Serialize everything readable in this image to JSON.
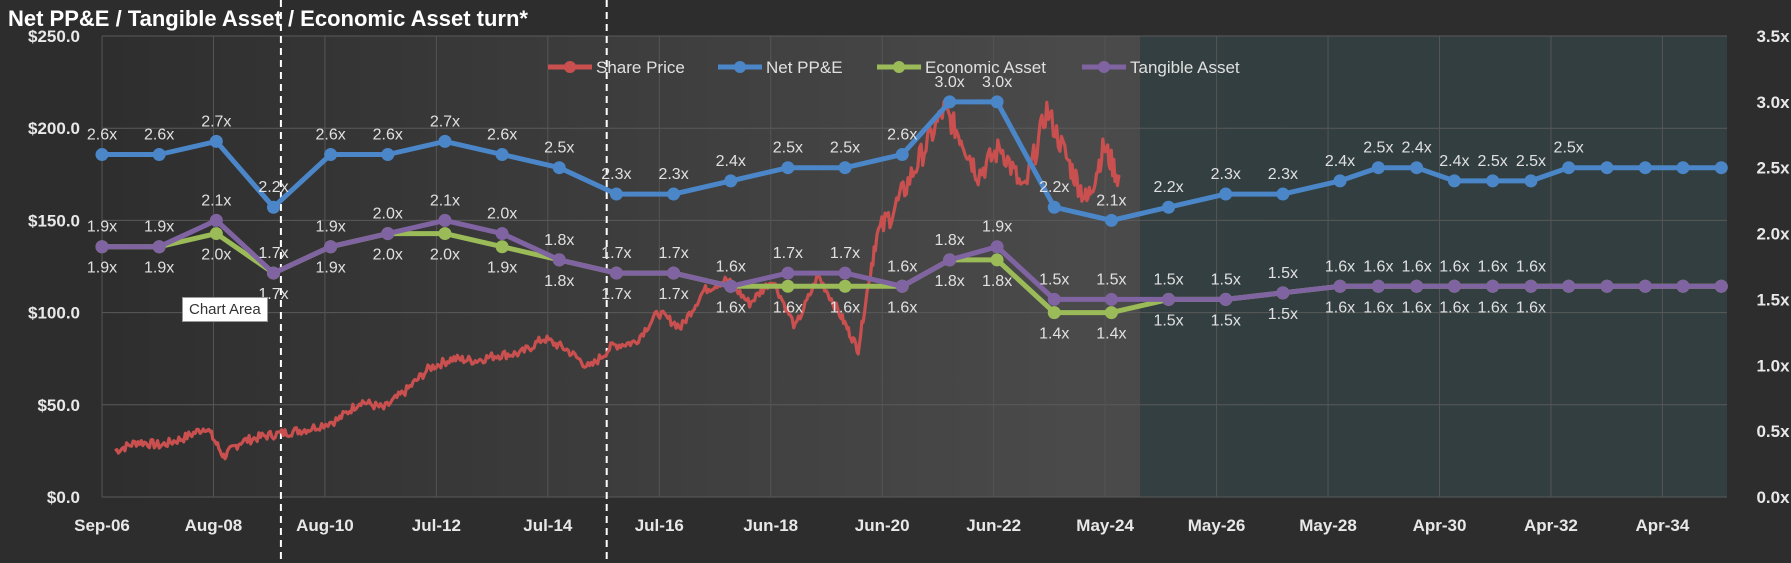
{
  "title": "Net PP&E / Tangible Asset / Economic Asset turn*",
  "tooltip": "Chart Area",
  "colors": {
    "share_price": "#c9504f",
    "net_ppe": "#4a86c8",
    "economic_asset": "#9bbb59",
    "tangible_asset": "#8064a2",
    "background": "#2d2d2d",
    "forecast_shade": "#2f3d40"
  },
  "chart_data": {
    "type": "line",
    "legend_position": "top-center",
    "grid": true,
    "x_tick_labels": [
      "Sep-06",
      "Aug-08",
      "Aug-10",
      "Jul-12",
      "Jul-14",
      "Jul-16",
      "Jun-18",
      "Jun-20",
      "Jun-22",
      "May-24",
      "May-26",
      "May-28",
      "Apr-30",
      "Apr-32",
      "Apr-34"
    ],
    "y_left": {
      "min": 0,
      "max": 250,
      "tick_labels": [
        "$0.0",
        "$50.0",
        "$100.0",
        "$150.0",
        "$200.0",
        "$250.0"
      ],
      "tick_values": [
        0,
        50,
        100,
        150,
        200,
        250
      ]
    },
    "y_right": {
      "min": 0,
      "max": 3.5,
      "tick_labels": [
        "0.0x",
        "0.5x",
        "1.0x",
        "1.5x",
        "2.0x",
        "2.5x",
        "3.0x",
        "3.5x"
      ],
      "tick_values": [
        0,
        0.5,
        1,
        1.5,
        2,
        2.5,
        3,
        3.5
      ]
    },
    "x_min": 2006.67,
    "x_max": 2035.1,
    "forecast_start": 2024.83,
    "vlines": [
      2009.8,
      2015.5
    ],
    "series": [
      {
        "name": "Net PP&E",
        "axis": "right",
        "x": [
          2006.67,
          2007.67,
          2008.67,
          2009.67,
          2010.67,
          2011.67,
          2012.67,
          2013.67,
          2014.67,
          2015.67,
          2016.67,
          2017.67,
          2018.67,
          2019.67,
          2020.67,
          2021.5,
          2022.33,
          2023.33,
          2024.33,
          2025.33,
          2026.33,
          2027.33,
          2028.33,
          2029.0,
          2029.67,
          2030.33,
          2031.0,
          2031.67,
          2032.33,
          2033.0,
          2033.67,
          2034.33,
          2035.0
        ],
        "values": [
          2.6,
          2.6,
          2.7,
          2.2,
          2.6,
          2.6,
          2.7,
          2.6,
          2.5,
          2.3,
          2.3,
          2.4,
          2.5,
          2.5,
          2.6,
          3.0,
          3.0,
          2.2,
          2.1,
          2.2,
          2.3,
          2.3,
          2.4,
          2.5,
          2.5,
          2.4,
          2.4,
          2.4,
          2.5,
          2.5,
          2.5,
          2.5,
          2.5
        ],
        "labels": [
          "2.6x",
          "2.6x",
          "2.7x",
          "2.2x",
          "2.6x",
          "2.6x",
          "2.7x",
          "2.6x",
          "2.5x",
          "2.3x",
          "2.3x",
          "2.4x",
          "2.5x",
          "2.5x",
          "2.6x",
          "3.0x",
          "3.0x",
          "2.2x",
          "2.1x",
          "2.2x",
          "2.3x",
          "2.3x",
          "2.4x",
          "2.5x",
          "2.4x",
          "2.4x",
          "2.5x",
          "2.5x",
          "2.5x"
        ]
      },
      {
        "name": "Tangible Asset",
        "axis": "right",
        "x": [
          2006.67,
          2007.67,
          2008.67,
          2009.67,
          2010.67,
          2011.67,
          2012.67,
          2013.67,
          2014.67,
          2015.67,
          2016.67,
          2017.67,
          2018.67,
          2019.67,
          2020.67,
          2021.5,
          2022.33,
          2023.33,
          2024.33,
          2025.33,
          2026.33,
          2027.33,
          2028.33,
          2029.0,
          2029.67,
          2030.33,
          2031.0,
          2031.67,
          2032.33,
          2033.0,
          2033.67,
          2034.33,
          2035.0
        ],
        "values": [
          1.9,
          1.9,
          2.1,
          1.7,
          1.9,
          2.0,
          2.1,
          2.0,
          1.8,
          1.7,
          1.7,
          1.6,
          1.7,
          1.7,
          1.6,
          1.8,
          1.9,
          1.5,
          1.5,
          1.5,
          1.5,
          1.55,
          1.6,
          1.6,
          1.6,
          1.6,
          1.6,
          1.6,
          1.6,
          1.6,
          1.6,
          1.6,
          1.6
        ],
        "labels": [
          "1.9x",
          "1.9x",
          "2.1x",
          "1.7x",
          "1.9x",
          "2.0x",
          "2.1x",
          "2.0x",
          "1.8x",
          "1.7x",
          "1.7x",
          "1.6x",
          "1.7x",
          "1.7x",
          "1.6x",
          "1.8x",
          "1.9x",
          "1.5x",
          "1.5x",
          "1.5x",
          "1.5x",
          "1.5x",
          "1.6x",
          "1.6x",
          "1.6x",
          "1.6x",
          "1.6x",
          "1.6x"
        ]
      },
      {
        "name": "Economic Asset",
        "axis": "right",
        "x": [
          2006.67,
          2007.67,
          2008.67,
          2009.67,
          2010.67,
          2011.67,
          2012.67,
          2013.67,
          2014.67,
          2015.67,
          2016.67,
          2017.67,
          2018.67,
          2019.67,
          2020.67,
          2021.5,
          2022.33,
          2023.33,
          2024.33,
          2025.33,
          2026.33,
          2027.33,
          2028.33,
          2029.0,
          2029.67,
          2030.33,
          2031.0,
          2031.67,
          2032.33,
          2033.0,
          2033.67,
          2034.33,
          2035.0
        ],
        "values": [
          1.9,
          1.9,
          2.0,
          1.7,
          1.9,
          2.0,
          2.0,
          1.9,
          1.8,
          1.7,
          1.7,
          1.6,
          1.6,
          1.6,
          1.6,
          1.8,
          1.8,
          1.4,
          1.4,
          1.5,
          1.5,
          1.55,
          1.6,
          1.6,
          1.6,
          1.6,
          1.6,
          1.6,
          1.6,
          1.6,
          1.6,
          1.6,
          1.6
        ],
        "labels": [
          "1.9x",
          "1.9x",
          "2.0x",
          "1.7x",
          "1.9x",
          "2.0x",
          "2.0x",
          "1.9x",
          "1.8x",
          "1.7x",
          "1.7x",
          "1.6x",
          "1.6x",
          "1.6x",
          "1.6x",
          "1.8x",
          "1.8x",
          "1.4x",
          "1.4x",
          "1.5x",
          "1.5x",
          "1.5x",
          "1.6x",
          "1.6x",
          "1.6x",
          "1.6x",
          "1.6x",
          "1.6x"
        ]
      },
      {
        "name": "Share Price",
        "axis": "left",
        "x": [
          2006.9,
          2007.3,
          2007.7,
          2008.1,
          2008.5,
          2008.8,
          2009.1,
          2009.5,
          2009.9,
          2010.3,
          2010.8,
          2011.2,
          2011.6,
          2012.0,
          2012.4,
          2012.8,
          2013.2,
          2013.6,
          2014.0,
          2014.4,
          2014.8,
          2015.2,
          2015.6,
          2016.0,
          2016.4,
          2016.8,
          2017.2,
          2017.6,
          2018.0,
          2018.4,
          2018.8,
          2019.2,
          2019.6,
          2019.9,
          2020.2,
          2020.6,
          2021.0,
          2021.4,
          2021.7,
          2022.0,
          2022.4,
          2022.8,
          2023.2,
          2023.6,
          2023.9,
          2024.2,
          2024.5
        ],
        "values": [
          25,
          30,
          28,
          32,
          38,
          22,
          30,
          33,
          35,
          37,
          42,
          52,
          48,
          58,
          70,
          75,
          74,
          77,
          78,
          86,
          80,
          70,
          82,
          84,
          100,
          92,
          112,
          118,
          105,
          118,
          92,
          120,
          98,
          80,
          140,
          160,
          185,
          210,
          195,
          175,
          190,
          165,
          210,
          180,
          160,
          190,
          170
        ]
      }
    ]
  }
}
